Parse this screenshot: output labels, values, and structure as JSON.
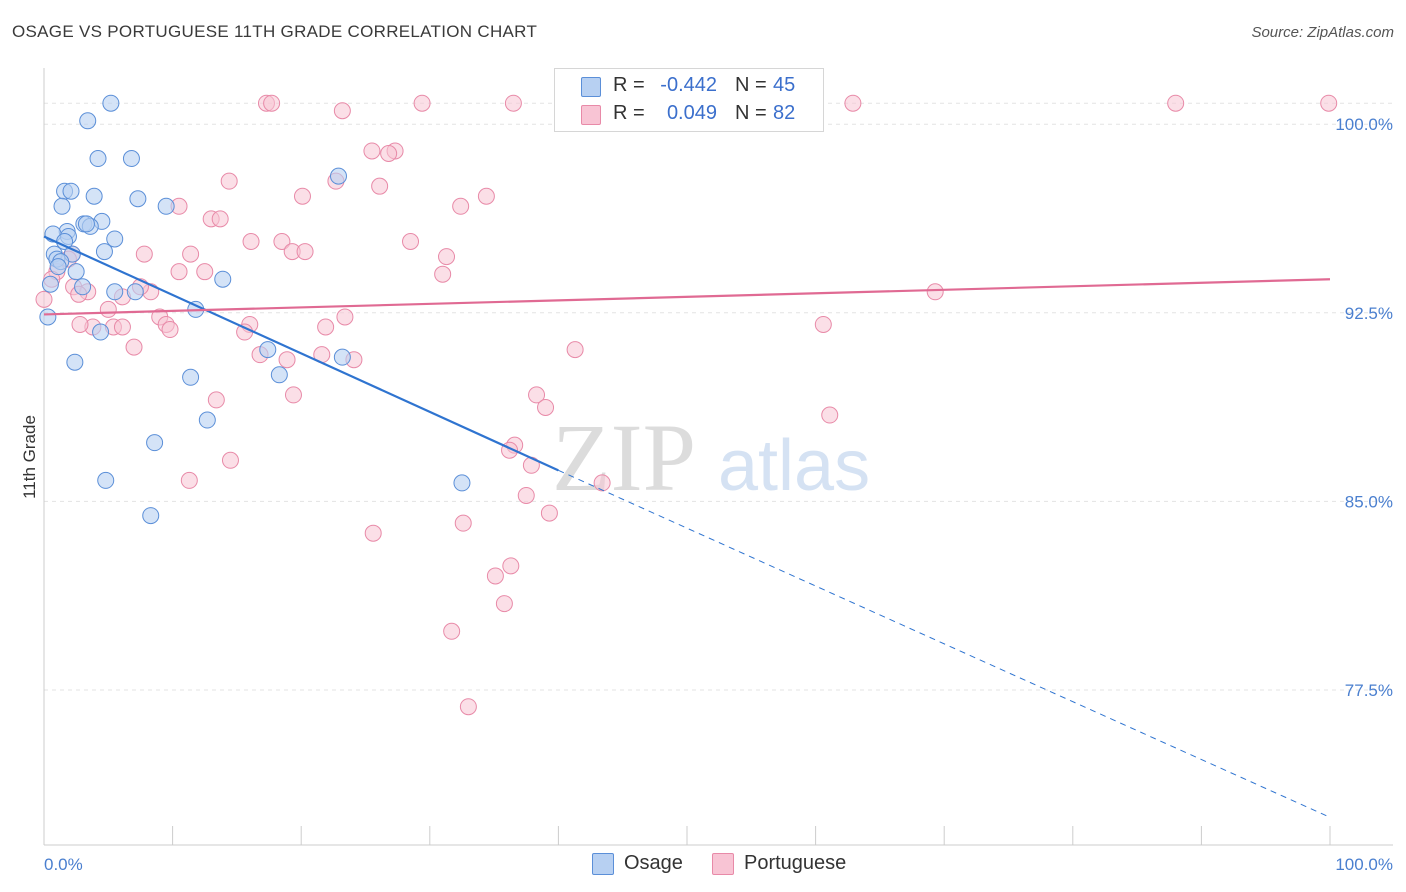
{
  "header": {
    "title": "OSAGE VS PORTUGUESE 11TH GRADE CORRELATION CHART",
    "source": "Source: ZipAtlas.com"
  },
  "watermark": {
    "zip": "ZIP",
    "atlas": "atlas"
  },
  "legend_top": {
    "rows": [
      {
        "r_label": "R =",
        "r_value": "-0.442",
        "n_label": "N =",
        "n_value": "45"
      },
      {
        "r_label": "R =",
        "r_value": "0.049",
        "n_label": "N =",
        "n_value": "82"
      }
    ]
  },
  "legend_bottom": [
    {
      "label": "Osage"
    },
    {
      "label": "Portuguese"
    }
  ],
  "colors": {
    "osage_fill": "#b7d0f2",
    "osage_stroke": "#5b8fd8",
    "osage_line": "#2f74d0",
    "portuguese_fill": "#f8c4d4",
    "portuguese_stroke": "#e88aa8",
    "portuguese_line": "#e06a93",
    "tick_text": "#4a7fcf",
    "grid": "#e3e3e3"
  },
  "chart_data": {
    "type": "scatter",
    "title": "OSAGE VS PORTUGUESE 11TH GRADE CORRELATION CHART",
    "xlabel": "",
    "ylabel": "11th Grade",
    "xlim": [
      0,
      100
    ],
    "ylim": [
      70.5,
      101.4
    ],
    "x_tick_labels": [
      {
        "value": 0,
        "label": "0.0%"
      },
      {
        "value": 100,
        "label": "100.0%"
      }
    ],
    "y_ticks": [
      {
        "value": 100.0,
        "label": "100.0%"
      },
      {
        "value": 92.5,
        "label": "92.5%"
      },
      {
        "value": 85.0,
        "label": "85.0%"
      },
      {
        "value": 77.5,
        "label": "77.5%"
      }
    ],
    "grid": true,
    "legend_position": "top-center",
    "series": [
      {
        "name": "Osage",
        "r": -0.442,
        "n": 45,
        "points": [
          [
            5.2,
            100.0
          ],
          [
            3.4,
            99.3
          ],
          [
            4.2,
            97.8
          ],
          [
            6.8,
            97.8
          ],
          [
            22.9,
            97.1
          ],
          [
            1.6,
            96.5
          ],
          [
            2.1,
            96.5
          ],
          [
            3.9,
            96.3
          ],
          [
            7.3,
            96.2
          ],
          [
            9.5,
            95.9
          ],
          [
            1.4,
            95.9
          ],
          [
            4.5,
            95.3
          ],
          [
            3.1,
            95.2
          ],
          [
            3.6,
            95.1
          ],
          [
            1.8,
            94.9
          ],
          [
            0.7,
            94.8
          ],
          [
            1.9,
            94.7
          ],
          [
            1.6,
            94.5
          ],
          [
            5.5,
            94.6
          ],
          [
            3.3,
            95.2
          ],
          [
            0.8,
            94.0
          ],
          [
            2.2,
            94.0
          ],
          [
            1.0,
            93.8
          ],
          [
            4.7,
            94.1
          ],
          [
            1.3,
            93.7
          ],
          [
            2.5,
            93.3
          ],
          [
            0.5,
            92.8
          ],
          [
            13.9,
            93.0
          ],
          [
            5.5,
            92.5
          ],
          [
            7.1,
            92.5
          ],
          [
            11.8,
            91.8
          ],
          [
            0.3,
            91.5
          ],
          [
            4.4,
            90.9
          ],
          [
            17.4,
            90.2
          ],
          [
            23.2,
            89.9
          ],
          [
            2.4,
            89.7
          ],
          [
            18.3,
            89.2
          ],
          [
            11.4,
            89.1
          ],
          [
            12.7,
            87.4
          ],
          [
            8.6,
            86.5
          ],
          [
            4.8,
            85.0
          ],
          [
            32.5,
            84.9
          ],
          [
            8.3,
            83.6
          ],
          [
            3.0,
            92.7
          ],
          [
            1.1,
            93.5
          ]
        ],
        "trend": {
          "x1": 0,
          "y1": 94.7,
          "x2": 40,
          "y2": 85.4,
          "dashed_to_x": 100,
          "dashed_to_y": 71.6
        }
      },
      {
        "name": "Portuguese",
        "r": 0.049,
        "n": 82,
        "points": [
          [
            17.3,
            100.0
          ],
          [
            17.7,
            100.0
          ],
          [
            29.4,
            100.0
          ],
          [
            36.5,
            100.0
          ],
          [
            62.9,
            100.0
          ],
          [
            88.0,
            100.0
          ],
          [
            99.9,
            100.0
          ],
          [
            23.2,
            99.7
          ],
          [
            25.5,
            98.1
          ],
          [
            27.3,
            98.1
          ],
          [
            26.8,
            98.0
          ],
          [
            14.4,
            96.9
          ],
          [
            22.7,
            96.9
          ],
          [
            26.1,
            96.7
          ],
          [
            20.1,
            96.3
          ],
          [
            34.4,
            96.3
          ],
          [
            10.5,
            95.9
          ],
          [
            32.4,
            95.9
          ],
          [
            13.0,
            95.4
          ],
          [
            13.7,
            95.4
          ],
          [
            16.1,
            94.5
          ],
          [
            18.5,
            94.5
          ],
          [
            28.5,
            94.5
          ],
          [
            19.3,
            94.1
          ],
          [
            20.3,
            94.1
          ],
          [
            7.8,
            94.0
          ],
          [
            11.4,
            94.0
          ],
          [
            31.3,
            93.9
          ],
          [
            2.2,
            94.0
          ],
          [
            1.0,
            93.3
          ],
          [
            2.3,
            92.7
          ],
          [
            12.5,
            93.3
          ],
          [
            31.0,
            93.2
          ],
          [
            10.5,
            93.3
          ],
          [
            3.4,
            92.5
          ],
          [
            8.3,
            92.5
          ],
          [
            6.1,
            92.3
          ],
          [
            2.7,
            92.4
          ],
          [
            0.0,
            92.2
          ],
          [
            69.3,
            92.5
          ],
          [
            7.5,
            92.7
          ],
          [
            5.0,
            91.8
          ],
          [
            9.0,
            91.5
          ],
          [
            9.5,
            91.2
          ],
          [
            23.4,
            91.5
          ],
          [
            16.0,
            91.2
          ],
          [
            3.8,
            91.1
          ],
          [
            5.4,
            91.1
          ],
          [
            6.1,
            91.1
          ],
          [
            9.8,
            91.0
          ],
          [
            21.9,
            91.1
          ],
          [
            15.6,
            90.9
          ],
          [
            60.6,
            91.2
          ],
          [
            7.0,
            90.3
          ],
          [
            16.8,
            90.0
          ],
          [
            21.6,
            90.0
          ],
          [
            18.9,
            89.8
          ],
          [
            24.1,
            89.8
          ],
          [
            41.3,
            90.2
          ],
          [
            19.4,
            88.4
          ],
          [
            38.3,
            88.4
          ],
          [
            39.0,
            87.9
          ],
          [
            13.4,
            88.2
          ],
          [
            36.6,
            86.4
          ],
          [
            61.1,
            87.6
          ],
          [
            36.2,
            86.2
          ],
          [
            14.5,
            85.8
          ],
          [
            37.9,
            85.6
          ],
          [
            11.3,
            85.0
          ],
          [
            43.4,
            84.9
          ],
          [
            37.5,
            84.4
          ],
          [
            39.3,
            83.7
          ],
          [
            32.6,
            83.3
          ],
          [
            25.6,
            82.9
          ],
          [
            36.3,
            81.6
          ],
          [
            35.1,
            81.2
          ],
          [
            35.8,
            80.1
          ],
          [
            31.7,
            79.0
          ],
          [
            33.0,
            76.0
          ],
          [
            1.9,
            93.8
          ],
          [
            0.6,
            93.0
          ],
          [
            2.8,
            91.2
          ]
        ],
        "trend": {
          "x1": 0,
          "y1": 91.6,
          "x2": 100,
          "y2": 93.0
        }
      }
    ]
  }
}
